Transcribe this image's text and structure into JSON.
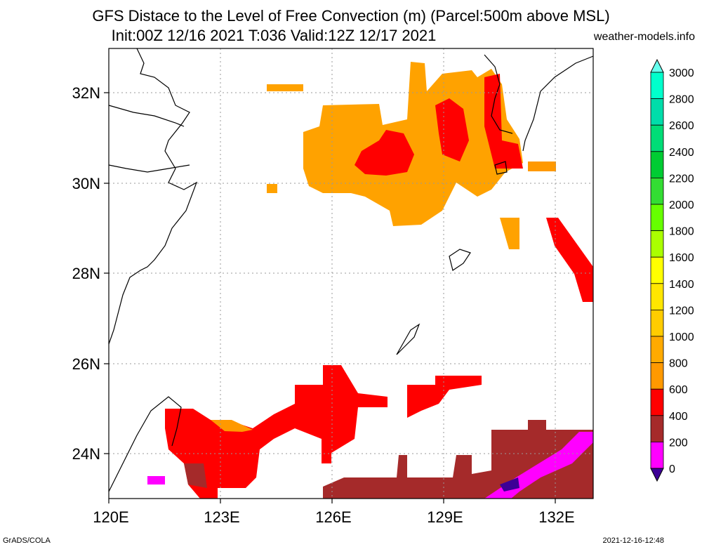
{
  "header": {
    "title_line1": "GFS Distace to the Level of Free Convection (m) (Parcel:500m above MSL)",
    "title_line2": "Init:00Z 12/16 2021 T:036 Valid:12Z 12/17 2021",
    "site": "weather-models.info"
  },
  "footer": {
    "left": "GrADS/COLA",
    "right": "2021-12-16-12:48"
  },
  "map": {
    "lon_labels": [
      "120E",
      "123E",
      "126E",
      "129E",
      "132E"
    ],
    "lat_labels": [
      "32N",
      "30N",
      "28N",
      "26N",
      "24N"
    ],
    "land_fill": "#ffffff",
    "coast_color": "#000000"
  },
  "legend": {
    "levels": [
      "0",
      "200",
      "400",
      "600",
      "800",
      "1000",
      "1200",
      "1400",
      "1600",
      "1800",
      "2000",
      "2200",
      "2400",
      "2600",
      "2800",
      "3000"
    ],
    "colors": [
      "#3c0096",
      "#ff00ff",
      "#a52a2a",
      "#ff0000",
      "#ff9900",
      "#ffaa00",
      "#ffcc00",
      "#ffe600",
      "#ffff00",
      "#aaff00",
      "#66ff00",
      "#33dd33",
      "#00cc33",
      "#00dd77",
      "#00ddaa",
      "#00ffcc",
      "#66ffee"
    ]
  }
}
